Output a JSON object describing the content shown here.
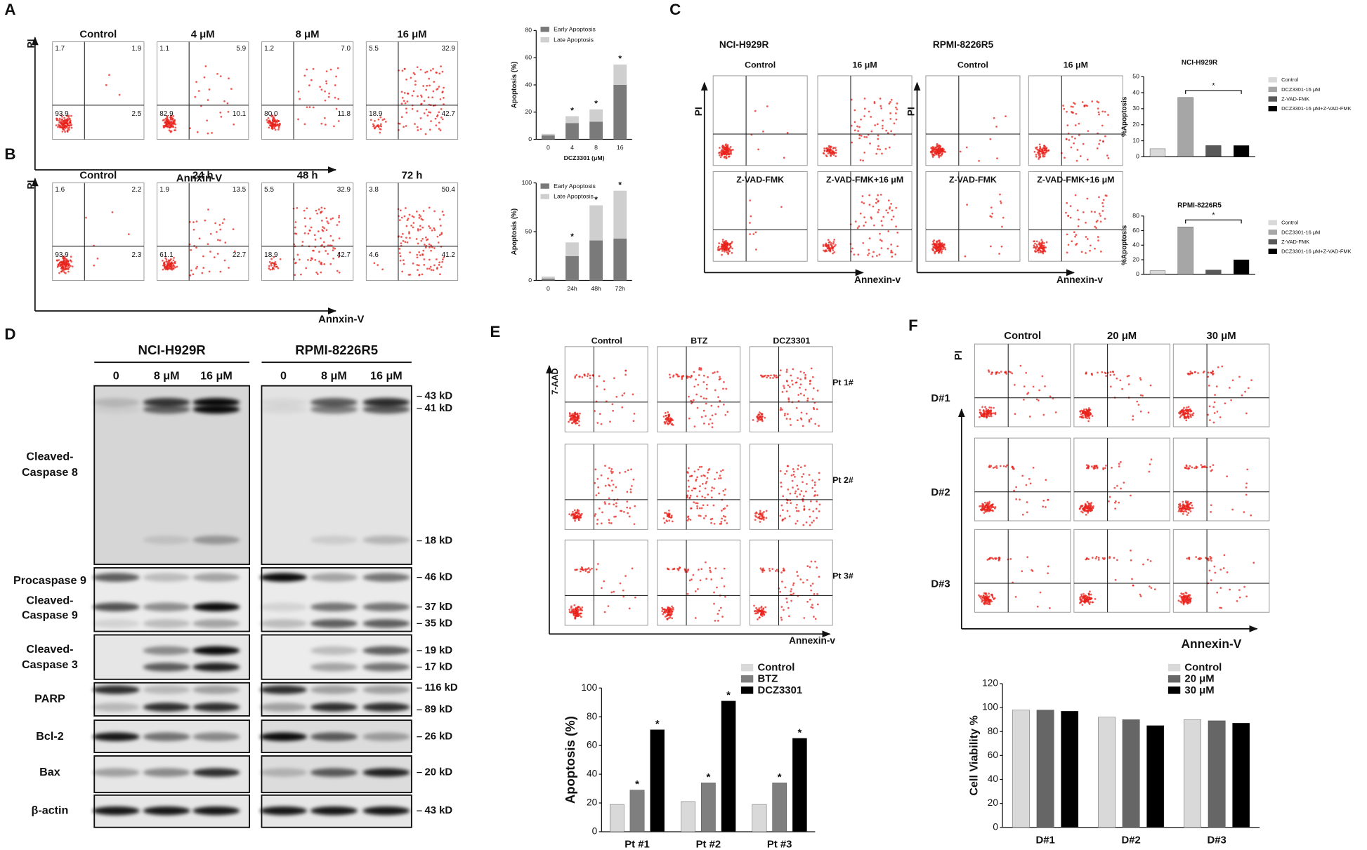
{
  "panel_letters": [
    "A",
    "B",
    "C",
    "D",
    "E",
    "F"
  ],
  "flow": {
    "A": {
      "y_label": "PI",
      "x_label": "Annxin-V",
      "plots": [
        {
          "title": "Control",
          "quadrants": [
            "1.7",
            "1.9",
            "93.9",
            "2.5"
          ]
        },
        {
          "title": "4 μM",
          "quadrants": [
            "1.1",
            "5.9",
            "82.9",
            "10.1"
          ]
        },
        {
          "title": "8 μM",
          "quadrants": [
            "1.2",
            "7.0",
            "80.0",
            "11.8"
          ]
        },
        {
          "title": "16 μM",
          "quadrants": [
            "5.5",
            "32.9",
            "18.9",
            "42.7"
          ]
        }
      ]
    },
    "B": {
      "y_label": "PI",
      "x_label": "Annxin-V",
      "plots": [
        {
          "title": "Control",
          "quadrants": [
            "1.6",
            "2.2",
            "93.9",
            "2.3"
          ]
        },
        {
          "title": "24 h",
          "quadrants": [
            "1.9",
            "13.5",
            "61.1",
            "22.7"
          ]
        },
        {
          "title": "48 h",
          "quadrants": [
            "5.5",
            "32.9",
            "18.9",
            "42.7"
          ]
        },
        {
          "title": "72 h",
          "quadrants": [
            "3.8",
            "50.4",
            "4.6",
            "41.2"
          ]
        }
      ]
    },
    "C": {
      "y_label": "PI",
      "x_label": "Annexin-v",
      "groups": [
        {
          "name": "NCI-H929R",
          "plots": [
            "Control",
            "16 μM",
            "Z-VAD-FMK",
            "Z-VAD-FMK+16 μM"
          ]
        },
        {
          "name": "RPMI-8226R5",
          "plots": [
            "Control",
            "16 μM",
            "Z-VAD-FMK",
            "Z-VAD-FMK+16 μM"
          ]
        }
      ]
    },
    "E": {
      "y_label": "7-AAD",
      "x_label": "Annexin-v",
      "columns": [
        "Control",
        "BTZ",
        "DCZ3301"
      ],
      "rows": [
        "Pt 1#",
        "Pt 2#",
        "Pt 3#"
      ]
    },
    "F": {
      "y_label": "PI",
      "x_label": "Annexin-V",
      "columns": [
        "Control",
        "20 μM",
        "30 μM"
      ],
      "rows": [
        "D#1",
        "D#2",
        "D#3"
      ]
    }
  },
  "western": {
    "groups": [
      {
        "name": "NCI-H929R",
        "lanes": [
          "0",
          "8 μM",
          "16 μM"
        ]
      },
      {
        "name": "RPMI-8226R5",
        "lanes": [
          "0",
          "8 μM",
          "16 μM"
        ]
      }
    ],
    "blots": [
      {
        "labels": [
          [
            "Cleaved-",
            "Caspase 8"
          ]
        ],
        "markers": [
          "43 kD",
          "41 kD",
          "18 kD"
        ]
      },
      {
        "labels": [
          [
            "Procaspase 9"
          ],
          [
            "Cleaved-",
            "Caspase 9"
          ]
        ],
        "markers": [
          "46 kD",
          "37 kD",
          "35 kD"
        ]
      },
      {
        "labels": [
          [
            "Cleaved-",
            "Caspase 3"
          ]
        ],
        "markers": [
          "19 kD",
          "17 kD"
        ]
      },
      {
        "labels": [
          [
            "PARP"
          ]
        ],
        "markers": [
          "116 kD",
          "89 kD"
        ]
      },
      {
        "labels": [
          [
            "Bcl-2"
          ]
        ],
        "markers": [
          "26 kD"
        ]
      },
      {
        "labels": [
          [
            "Bax"
          ]
        ],
        "markers": [
          "20 kD"
        ]
      },
      {
        "labels": [
          [
            "β-actin"
          ]
        ],
        "markers": [
          "43 kD"
        ]
      }
    ]
  },
  "chart_data": [
    {
      "type": "bar",
      "stacked": true,
      "x_label": "DCZ3301 (μM)",
      "y_label": "Apoptosis (%)",
      "categories": [
        "0",
        "4",
        "8",
        "16"
      ],
      "series": [
        {
          "name": "Early Apoptosis",
          "color": "#7a7a7a",
          "values": [
            3,
            12,
            13,
            40
          ]
        },
        {
          "name": "Late Apoptosis",
          "color": "#cfcfcf",
          "values": [
            1,
            5,
            9,
            15
          ]
        }
      ],
      "significance": [
        null,
        "*",
        "*",
        "*"
      ],
      "ylim": [
        0,
        80
      ],
      "yticks": [
        0,
        20,
        40,
        60,
        80
      ]
    },
    {
      "type": "bar",
      "stacked": true,
      "y_label": "Apoptosis (%)",
      "categories": [
        "0",
        "24h",
        "48h",
        "72h"
      ],
      "series": [
        {
          "name": "Early Apoptosis",
          "color": "#7a7a7a",
          "values": [
            2,
            25,
            41,
            43
          ]
        },
        {
          "name": "Late Apoptosis",
          "color": "#cfcfcf",
          "values": [
            2,
            14,
            36,
            49
          ]
        }
      ],
      "significance": [
        null,
        "*",
        "*",
        "*"
      ],
      "ylim": [
        0,
        100
      ],
      "yticks": [
        0,
        50,
        100
      ]
    },
    {
      "type": "bar",
      "title": "NCI-H929R",
      "y_label": "%Apoptosis",
      "series": [
        {
          "name": "Control",
          "color": "#d9d9d9",
          "values": [
            5
          ]
        },
        {
          "name": "DCZ3301-16 μM",
          "color": "#a6a6a6",
          "values": [
            37
          ]
        },
        {
          "name": "Z-VAD-FMK",
          "color": "#595959",
          "values": [
            7
          ]
        },
        {
          "name": "DCZ3301-16 μM+Z-VAD-FMK",
          "color": "#000000",
          "values": [
            7
          ]
        }
      ],
      "comparison_label": "*",
      "ylim": [
        0,
        50
      ],
      "yticks": [
        0,
        10,
        20,
        30,
        40,
        50
      ]
    },
    {
      "type": "bar",
      "title": "RPMI-8226R5",
      "y_label": "%Apoptosis",
      "series": [
        {
          "name": "Control",
          "color": "#d9d9d9",
          "values": [
            5
          ]
        },
        {
          "name": "DCZ3301-16 μM",
          "color": "#a6a6a6",
          "values": [
            65
          ]
        },
        {
          "name": "Z-VAD-FMK",
          "color": "#595959",
          "values": [
            6
          ]
        },
        {
          "name": "DCZ3301-16 μM+Z-VAD-FMK",
          "color": "#000000",
          "values": [
            20
          ]
        }
      ],
      "comparison_label": "*",
      "ylim": [
        0,
        80
      ],
      "yticks": [
        0,
        20,
        40,
        60,
        80
      ]
    },
    {
      "type": "bar",
      "y_label": "Apoptosis (%)",
      "categories": [
        "Pt #1",
        "Pt #2",
        "Pt #3"
      ],
      "series": [
        {
          "name": "Control",
          "color": "#d9d9d9",
          "values": [
            19,
            21,
            19
          ]
        },
        {
          "name": "BTZ",
          "color": "#7f7f7f",
          "values": [
            29,
            34,
            34
          ],
          "significance": [
            "*",
            "*",
            "*"
          ]
        },
        {
          "name": "DCZ3301",
          "color": "#000000",
          "values": [
            71,
            91,
            65
          ],
          "significance": [
            "*",
            "*",
            "*"
          ]
        }
      ],
      "ylim": [
        0,
        100
      ],
      "yticks": [
        0,
        20,
        40,
        60,
        80,
        100
      ]
    },
    {
      "type": "bar",
      "y_label": "Cell Viability %",
      "categories": [
        "D#1",
        "D#2",
        "D#3"
      ],
      "series": [
        {
          "name": "Control",
          "color": "#d9d9d9",
          "values": [
            98,
            92,
            90
          ]
        },
        {
          "name": "20 μM",
          "color": "#666666",
          "values": [
            98,
            90,
            89
          ]
        },
        {
          "name": "30 μM",
          "color": "#000000",
          "values": [
            97,
            85,
            87
          ]
        }
      ],
      "ylim": [
        0,
        120
      ],
      "yticks": [
        0,
        20,
        40,
        60,
        80,
        100,
        120
      ]
    }
  ]
}
